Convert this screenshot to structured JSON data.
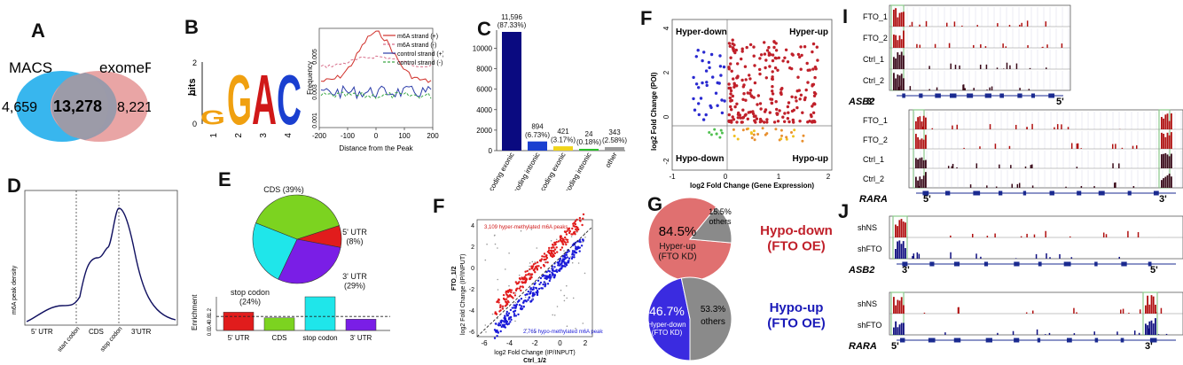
{
  "panel_letters": {
    "a": "A",
    "b": "B",
    "c": "C",
    "d": "D",
    "e": "E",
    "f1": "F",
    "f2": "F",
    "g": "G",
    "i": "I",
    "j": "J"
  },
  "colors": {
    "red": "#c0202a",
    "blue": "#1a1aa8",
    "navy": "#0a0a80",
    "grey": "#8a8a8a",
    "green": "#7cd320",
    "cyan": "#1fe6ea",
    "purple": "#7a1ee6",
    "yellow": "#f4e02a",
    "salmon": "#e58c8c",
    "lightblue": "#38b6ee"
  },
  "venn": {
    "left_label": "MACS",
    "right_label": "exomePeak",
    "left_only": "4,659",
    "overlap": "13,278",
    "right_only": "8,221"
  },
  "motif": {
    "ylabel": "bits",
    "letters": [
      "G",
      "G",
      "A",
      "C"
    ],
    "positions": [
      "1",
      "2",
      "3",
      "4"
    ],
    "yticks": [
      "0",
      "1",
      "2"
    ]
  },
  "freq_chart": {
    "ylabel": "Frequency",
    "xlabel": "Distance from the Peak",
    "xticks": [
      "-200",
      "-100",
      "0",
      "100",
      "200"
    ],
    "yticks": [
      "0.001",
      "0.003",
      "0.005"
    ],
    "legend": [
      {
        "name": "m6A strand (+)",
        "color": "#d0302a",
        "dash": false
      },
      {
        "name": "m6A strand (-)",
        "color": "#d76e8a",
        "dash": true
      },
      {
        "name": "control strand (+)",
        "color": "#2a3ba8",
        "dash": false
      },
      {
        "name": "control strand (-)",
        "color": "#3aa845",
        "dash": true
      }
    ]
  },
  "chart_data": [
    {
      "type": "bar",
      "panel": "C",
      "categories": [
        "coding exonic",
        "coding intronic",
        "noncoding exonic",
        "noncoding intronic",
        "other"
      ],
      "values": [
        11596,
        894,
        421,
        24,
        343
      ],
      "labels": [
        "11,596\n(87.33%)",
        "894\n(6.73%)",
        "421\n(3.17%)",
        "24\n(0.18%)",
        "343\n(2.58%)"
      ],
      "yticks": [
        "0",
        "2000",
        "4000",
        "6000",
        "8000",
        "10000"
      ],
      "ylim": [
        0,
        11596
      ],
      "colors": [
        "#0a0a80",
        "#1a3fd0",
        "#f0d41a",
        "#2bbf2b",
        "#9a9a9a"
      ]
    },
    {
      "type": "line",
      "panel": "D",
      "ylabel": "m6A peak density",
      "regions": [
        "5' UTR",
        "CDS",
        "3'UTR"
      ],
      "ticks": [
        "start codon",
        "stop codon"
      ]
    },
    {
      "type": "pie",
      "panel": "E",
      "slices": [
        {
          "label": "CDS (39%)",
          "value": 39,
          "color": "#7cd320"
        },
        {
          "label": "5' UTR\n(8%)",
          "value": 8,
          "color": "#e11c1c"
        },
        {
          "label": "3' UTR\n(29%)",
          "value": 29,
          "color": "#7a1ee6"
        },
        {
          "label": "stop codon\n(24%)",
          "value": 24,
          "color": "#1fe6ea"
        }
      ]
    },
    {
      "type": "bar",
      "panel": "E-enrichment",
      "ylabel": "Enrichment",
      "categories": [
        "5' UTR",
        "CDS",
        "stop codon",
        "3' UTR"
      ],
      "values": [
        1.3,
        0.9,
        2.4,
        0.8
      ],
      "yticks": [
        "0.0",
        "0.4",
        "0.8",
        "1.2"
      ],
      "colors": [
        "#e11c1c",
        "#7cd320",
        "#1fe6ea",
        "#7a1ee6"
      ]
    },
    {
      "type": "scatter",
      "panel": "F-lower",
      "ylabel": "log2 Fold Change (IP/INPUT)",
      "ylabel2": "FTO_1/2",
      "xlabel": "log2 Fold Change (IP/INPUT)",
      "xlabel2": "Ctrl_1/2",
      "annot_top": "3,109 hyper-methylated m6A peaks",
      "annot_bottom": "2,765 hypo-methylated m6A peaks",
      "xticks": [
        "-6",
        "-4",
        "-2",
        "0",
        "2"
      ],
      "yticks": [
        "-6",
        "-4",
        "-2",
        "0",
        "2",
        "4"
      ]
    },
    {
      "type": "scatter",
      "panel": "F-upper",
      "ylabel": "log2 Fold Change (POI)",
      "xlabel": "log2 Fold Change (Gene Expression)",
      "quadrants": [
        "Hyper-down",
        "Hyper-up",
        "Hypo-down",
        "Hypo-up"
      ],
      "xticks": [
        "-1",
        "0",
        "1",
        "2"
      ],
      "yticks": [
        "-2",
        "0",
        "2",
        "4"
      ]
    },
    {
      "type": "pie",
      "panel": "G-top",
      "slices": [
        {
          "label": "84.5%",
          "sub": "Hyper-up\n(FTO KD)",
          "value": 84.5,
          "color": "#e07070"
        },
        {
          "label": "15.5%",
          "sub": "others",
          "value": 15.5,
          "color": "#8a8a8a"
        }
      ],
      "title": "Hypo-down\n(FTO OE)"
    },
    {
      "type": "pie",
      "panel": "G-bottom",
      "slices": [
        {
          "label": "46.7%",
          "sub": "Hyper-down\n(FTO KD)",
          "value": 46.7,
          "color": "#3a2be0"
        },
        {
          "label": "53.3%",
          "sub": "others",
          "value": 53.3,
          "color": "#8a8a8a"
        }
      ],
      "title": "Hypo-up\n(FTO OE)"
    }
  ],
  "tracks_i": {
    "top_rows": [
      "FTO_1",
      "FTO_2",
      "Ctrl_1",
      "Ctrl_2"
    ],
    "top_gene": "ASB2",
    "top_left": "3'",
    "top_right": "5'",
    "bottom_rows": [
      "FTO_1",
      "FTO_2",
      "Ctrl_1",
      "Ctrl_2"
    ],
    "bottom_gene": "RARA",
    "bottom_left": "5'",
    "bottom_right": "3'"
  },
  "tracks_j": {
    "top_rows": [
      "shNS",
      "shFTO"
    ],
    "top_gene": "ASB2",
    "top_left": "3'",
    "top_right": "5'",
    "bottom_rows": [
      "shNS",
      "shFTO"
    ],
    "bottom_gene": "RARA",
    "bottom_left": "5'",
    "bottom_right": "3'"
  }
}
